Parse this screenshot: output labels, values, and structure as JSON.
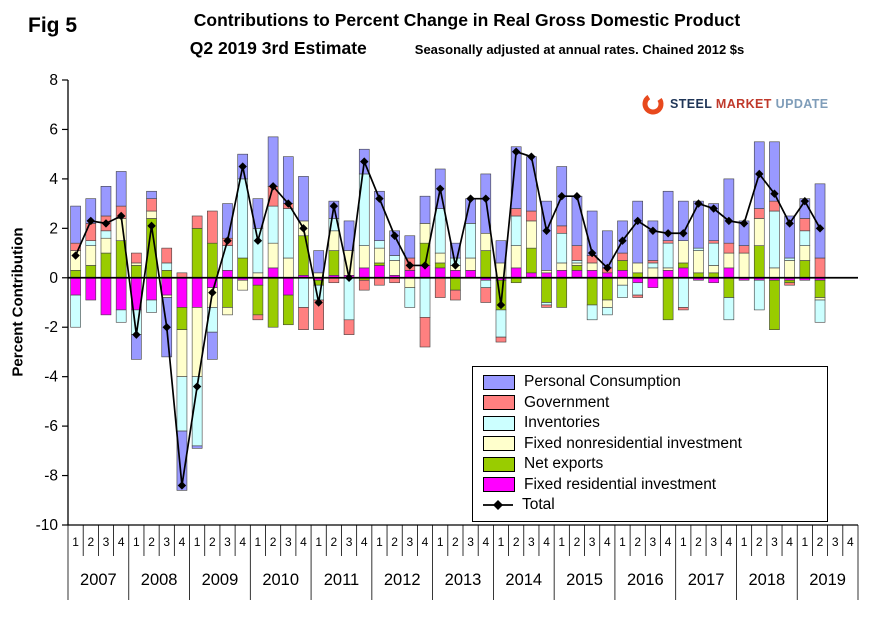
{
  "header": {
    "fig_label": "Fig 5",
    "title_line1": "Contributions to Percent Change in Real Gross Domestic Product",
    "title_line2": "Q2 2019 3rd Estimate",
    "subtitle": "Seasonally adjusted at annual rates. Chained 2012 $s"
  },
  "logo": {
    "words": [
      {
        "text": "STEEL",
        "color": "#1F3557"
      },
      {
        "text": "MARKET",
        "color": "#C0392B"
      },
      {
        "text": "UPDATE",
        "color": "#7F9DB9"
      }
    ],
    "swoosh_color": "#E8491D"
  },
  "chart_data": {
    "type": "bar",
    "stacked": true,
    "title": "Contributions to Percent Change in Real Gross Domestic Product",
    "ylabel": "Percent Contribution",
    "ylim": [
      -10,
      8
    ],
    "ytick_step": 2,
    "grid": false,
    "legend_position": "inside-bottom-right",
    "years": [
      2007,
      2008,
      2009,
      2010,
      2011,
      2012,
      2013,
      2014,
      2015,
      2016,
      2017,
      2018,
      2019
    ],
    "quarter_labels": [
      "1",
      "2",
      "3",
      "4"
    ],
    "series": [
      {
        "name": "Personal Consumption",
        "color": "#9999FF",
        "values": [
          1.5,
          1.0,
          1.2,
          1.4,
          -1.0,
          0.3,
          -2.4,
          -2.4,
          -0.1,
          -1.1,
          1.4,
          1.0,
          1.2,
          2.0,
          1.9,
          1.8,
          0.9,
          0.7,
          1.2,
          1.0,
          2.0,
          1.0,
          0.9,
          1.1,
          1.6,
          0.6,
          1.0,
          2.4,
          0.9,
          2.5,
          2.2,
          2.8,
          2.4,
          2.0,
          1.8,
          1.5,
          1.3,
          2.5,
          1.6,
          2.0,
          1.6,
          1.9,
          1.5,
          2.6,
          1.0,
          2.7,
          2.4,
          1.7,
          0.8,
          3.0
        ]
      },
      {
        "name": "Government",
        "color": "#FF8080",
        "values": [
          0.3,
          0.7,
          0.6,
          0.5,
          0.4,
          0.5,
          0.6,
          0.2,
          0.5,
          1.3,
          0.3,
          0.0,
          -0.2,
          0.8,
          0.2,
          -0.9,
          -1.2,
          -0.2,
          -0.6,
          -0.4,
          -0.3,
          -0.2,
          0.5,
          -1.2,
          -0.8,
          -0.4,
          0.0,
          -0.6,
          -0.2,
          0.3,
          0.4,
          -0.1,
          0.3,
          0.6,
          0.3,
          0.2,
          0.3,
          -0.1,
          0.1,
          0.1,
          -0.1,
          0.0,
          0.1,
          0.4,
          0.3,
          0.4,
          0.4,
          -0.1,
          0.5,
          0.8
        ]
      },
      {
        "name": "Inventories",
        "color": "#CCFFFF",
        "values": [
          -1.3,
          0.2,
          0.3,
          -0.5,
          -1.0,
          -0.5,
          0.3,
          -2.2,
          -2.8,
          -1.0,
          1.0,
          3.2,
          1.8,
          1.5,
          2.0,
          -1.2,
          -0.6,
          0.5,
          -1.7,
          2.9,
          0.3,
          0.2,
          -0.8,
          -1.6,
          1.8,
          0.3,
          1.4,
          -0.3,
          -1.1,
          1.2,
          0.0,
          -0.1,
          1.2,
          0.1,
          -0.6,
          -0.3,
          -0.5,
          -0.5,
          0.2,
          1.0,
          -1.2,
          0.1,
          0.9,
          -0.9,
          0.0,
          -1.2,
          2.3,
          0.1,
          0.6,
          -0.9
        ]
      },
      {
        "name": "Fixed nonresidential investment",
        "color": "#FFFFCC",
        "values": [
          0.8,
          0.8,
          0.6,
          0.9,
          0.1,
          0.3,
          -0.1,
          -1.9,
          -2.8,
          -0.8,
          -0.3,
          -0.4,
          0.2,
          1.0,
          0.8,
          0.6,
          0.2,
          0.8,
          1.0,
          0.9,
          0.6,
          0.6,
          -0.4,
          0.8,
          0.4,
          0.2,
          0.5,
          0.7,
          0.6,
          0.9,
          1.1,
          0.1,
          0.3,
          0.1,
          0.3,
          -0.3,
          -0.3,
          0.4,
          0.4,
          0.1,
          0.9,
          0.9,
          0.3,
          0.6,
          1.0,
          1.1,
          0.4,
          0.7,
          0.6,
          -0.1
        ]
      },
      {
        "name": "Net exports",
        "color": "#99CC00",
        "values": [
          0.3,
          0.5,
          1.0,
          1.5,
          0.5,
          2.4,
          0.3,
          -0.9,
          2.0,
          1.4,
          -1.2,
          0.8,
          -1.2,
          -2.0,
          -1.2,
          1.6,
          -0.2,
          1.0,
          0.0,
          -0.1,
          0.1,
          0.0,
          0.0,
          0.9,
          0.2,
          -0.5,
          0.0,
          1.1,
          -1.2,
          -0.2,
          1.0,
          -1.0,
          -1.2,
          0.2,
          -1.1,
          -0.9,
          0.4,
          0.2,
          0.0,
          -1.7,
          0.2,
          0.2,
          0.2,
          -0.8,
          0.0,
          1.3,
          -2.0,
          -0.1,
          0.7,
          -0.7
        ]
      },
      {
        "name": "Fixed residential investment",
        "color": "#FF00FF",
        "values": [
          -0.7,
          -0.9,
          -1.5,
          -1.3,
          -1.3,
          -0.9,
          -0.7,
          -1.2,
          -1.2,
          -0.4,
          0.3,
          -0.1,
          -0.3,
          0.4,
          -0.7,
          0.1,
          -0.1,
          0.1,
          0.1,
          0.4,
          0.5,
          0.1,
          0.3,
          0.5,
          0.4,
          0.3,
          0.3,
          -0.1,
          -0.1,
          0.4,
          0.2,
          0.2,
          0.3,
          0.3,
          0.3,
          0.2,
          0.3,
          -0.2,
          -0.4,
          0.3,
          0.4,
          -0.1,
          -0.2,
          0.4,
          -0.1,
          -0.1,
          -0.1,
          -0.1,
          -0.1,
          -0.1
        ]
      }
    ],
    "total": {
      "name": "Total",
      "color": "#000000",
      "values": [
        0.9,
        2.3,
        2.2,
        2.5,
        -2.3,
        2.1,
        -2.0,
        -8.4,
        -4.4,
        -0.6,
        1.5,
        4.5,
        1.5,
        3.7,
        3.0,
        2.0,
        -1.0,
        2.9,
        0.0,
        4.7,
        3.2,
        1.7,
        0.5,
        0.5,
        3.6,
        0.5,
        3.2,
        3.2,
        -1.1,
        5.1,
        4.9,
        1.9,
        3.3,
        3.3,
        1.0,
        0.4,
        1.5,
        2.3,
        1.9,
        1.8,
        1.8,
        3.0,
        2.8,
        2.3,
        2.2,
        4.2,
        3.4,
        2.2,
        3.1,
        2.0
      ]
    }
  }
}
